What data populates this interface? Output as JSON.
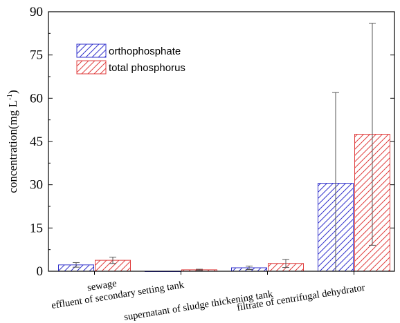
{
  "chart_data": {
    "type": "bar",
    "title": "",
    "xlabel": "",
    "ylabel": "concentration(mg L",
    "ylabel_sup": "-1",
    "ylabel_close": ")",
    "ylim": [
      0,
      90
    ],
    "yticks": [
      0,
      15,
      30,
      45,
      60,
      75,
      90
    ],
    "grid": false,
    "legend_position": "top-left",
    "categories": [
      "sewage",
      "effluent of  secondary setting tank",
      "supernatant of sludge thickening tank",
      "filtrate of centrifugal dehydrator"
    ],
    "series": [
      {
        "name": "orthophosphate",
        "color": "#3333cc",
        "values": [
          2.2,
          0,
          1.2,
          30.5
        ],
        "errors": [
          0.8,
          0,
          0.6,
          31.5
        ]
      },
      {
        "name": "total phosphorus",
        "color": "#e04040",
        "values": [
          3.8,
          0.5,
          2.7,
          47.5
        ],
        "errors": [
          1.1,
          0.2,
          1.4,
          38.5
        ]
      }
    ]
  }
}
